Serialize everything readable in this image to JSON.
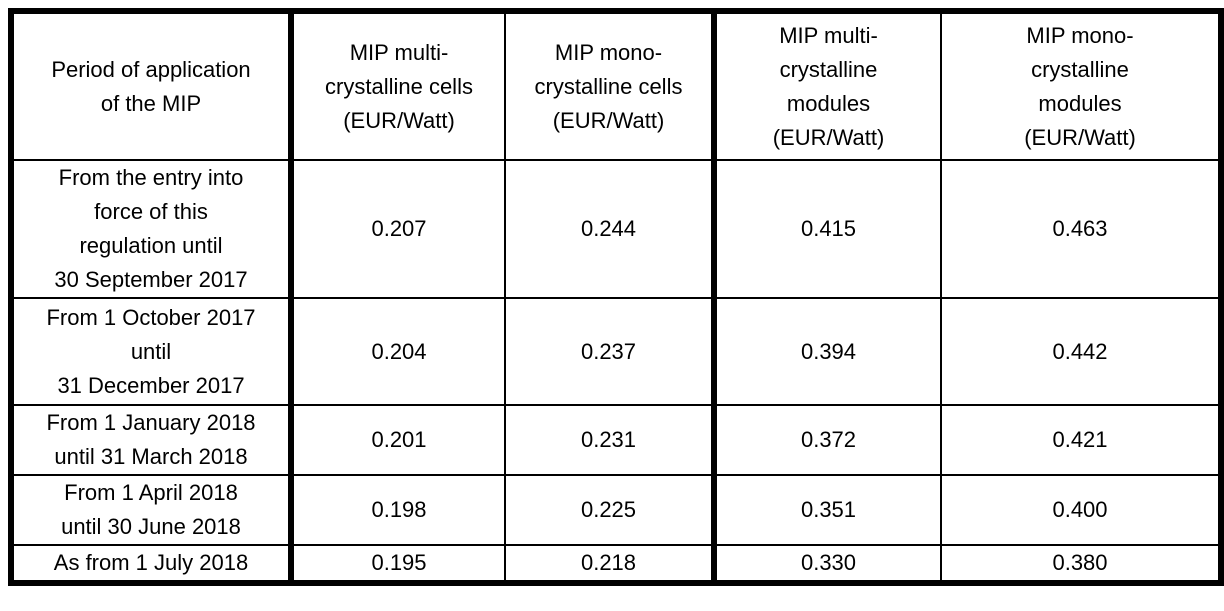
{
  "page": {
    "background_color": "#ffffff",
    "border_color": "#000000",
    "text_color": "#000000"
  },
  "table": {
    "name": "MIP prices table",
    "columns": [
      {
        "label": "Period of application\nof the MIP"
      },
      {
        "label": "MIP multi-\ncrystalline cells\n(EUR/Watt)"
      },
      {
        "label": "MIP mono-\ncrystalline cells\n(EUR/Watt)"
      },
      {
        "label": "MIP multi-\ncrystalline\nmodules\n(EUR/Watt)"
      },
      {
        "label": "MIP mono-\ncrystalline\nmodules\n(EUR/Watt)"
      }
    ],
    "rows": [
      {
        "period": "From the entry into\nforce of this\nregulation until\n30 September 2017",
        "values": [
          "0.207",
          "0.244",
          "0.415",
          "0.463"
        ]
      },
      {
        "period": "From 1 October 2017\nuntil\n31 December 2017",
        "values": [
          "0.204",
          "0.237",
          "0.394",
          "0.442"
        ]
      },
      {
        "period": "From 1 January 2018\nuntil 31 March 2018",
        "values": [
          "0.201",
          "0.231",
          "0.372",
          "0.421"
        ]
      },
      {
        "period": "From 1 April 2018\nuntil 30 June 2018",
        "values": [
          "0.198",
          "0.225",
          "0.351",
          "0.400"
        ]
      },
      {
        "period": "As from 1 July 2018",
        "values": [
          "0.195",
          "0.218",
          "0.330",
          "0.380"
        ]
      }
    ]
  }
}
